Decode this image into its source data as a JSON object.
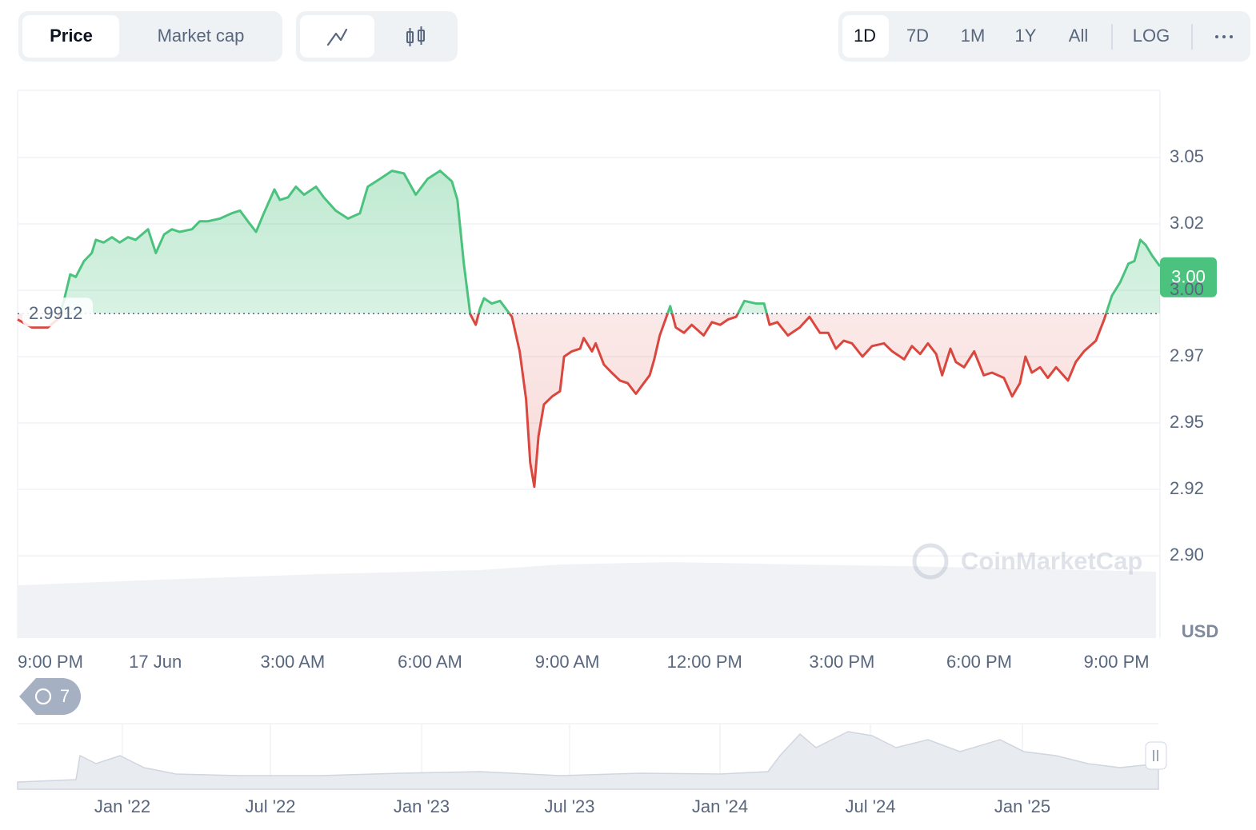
{
  "tabs": [
    "Price",
    "Market cap"
  ],
  "ranges": [
    "1D",
    "7D",
    "1M",
    "1Y",
    "All"
  ],
  "log_label": "LOG",
  "history_count": 7,
  "navigator": {
    "ticks": [
      "Jan '22",
      "Jul '22",
      "Jan '23",
      "Jul '23",
      "Jan '24",
      "Jul '24",
      "Jan '25"
    ]
  },
  "chart_data": {
    "type": "line",
    "up_color": "#4bc27d",
    "down_color": "#d9473f",
    "grid": true,
    "reference": 2.9912,
    "price_badge": {
      "value": 3.0049,
      "label": "3.00"
    },
    "currency": "USD",
    "watermark": "CoinMarketCap",
    "xlim": [
      -3.01,
      21.95
    ],
    "ylim": [
      2.869,
      3.0753
    ],
    "xticks": [
      {
        "value": -3,
        "label": "9:00 PM"
      },
      {
        "value": 0,
        "label": "17 Jun"
      },
      {
        "value": 3,
        "label": "3:00 AM"
      },
      {
        "value": 6,
        "label": "6:00 AM"
      },
      {
        "value": 9,
        "label": "9:00 AM"
      },
      {
        "value": 12,
        "label": "12:00 PM"
      },
      {
        "value": 15,
        "label": "3:00 PM"
      },
      {
        "value": 18,
        "label": "6:00 PM"
      },
      {
        "value": 21,
        "label": "9:00 PM"
      }
    ],
    "yticks": [
      3.05,
      {
        "value": 3.025,
        "label": "3.02"
      },
      {
        "value": 3,
        "label": "3.00"
      },
      {
        "value": 2.975,
        "label": "2.97"
      },
      2.95,
      {
        "value": 2.925,
        "label": "2.92"
      },
      {
        "value": 2.9,
        "label": "2.90"
      }
    ],
    "x": [
      -3.01,
      -2.7,
      -2.35,
      -2.14,
      -2.0,
      -1.86,
      -1.74,
      -1.56,
      -1.39,
      -1.3,
      -1.13,
      -0.95,
      -0.78,
      -0.6,
      -0.43,
      -0.16,
      0.01,
      0.19,
      0.36,
      0.53,
      0.8,
      0.97,
      1.15,
      1.41,
      1.67,
      1.85,
      2.02,
      2.2,
      2.37,
      2.6,
      2.72,
      2.9,
      3.07,
      3.25,
      3.51,
      3.68,
      3.94,
      4.21,
      4.47,
      4.64,
      4.91,
      5.17,
      5.43,
      5.69,
      5.95,
      6.22,
      6.48,
      6.6,
      6.74,
      6.88,
      7.0,
      7.09,
      7.18,
      7.35,
      7.53,
      7.79,
      7.96,
      8.1,
      8.19,
      8.28,
      8.37,
      8.49,
      8.67,
      8.84,
      8.93,
      9.1,
      9.28,
      9.36,
      9.54,
      9.62,
      9.8,
      9.97,
      10.15,
      10.32,
      10.5,
      10.67,
      10.8,
      10.9,
      11.02,
      11.25,
      11.37,
      11.55,
      11.72,
      11.98,
      12.16,
      12.34,
      12.51,
      12.69,
      12.87,
      13.12,
      13.3,
      13.42,
      13.59,
      13.82,
      14.08,
      14.29,
      14.52,
      14.7,
      14.87,
      15.04,
      15.22,
      15.45,
      15.66,
      15.92,
      16.1,
      16.36,
      16.53,
      16.71,
      16.88,
      17.06,
      17.19,
      17.37,
      17.49,
      17.67,
      17.89,
      18.1,
      18.28,
      18.54,
      18.72,
      18.89,
      19.01,
      19.15,
      19.33,
      19.5,
      19.68,
      19.94,
      20.11,
      20.29,
      20.55,
      20.73,
      20.9,
      21.08,
      21.26,
      21.39,
      21.52,
      21.64,
      21.78,
      21.95
    ],
    "values": [
      2.989,
      2.986,
      2.986,
      2.989,
      2.996,
      3.006,
      3.005,
      3.011,
      3.014,
      3.019,
      3.018,
      3.02,
      3.018,
      3.02,
      3.019,
      3.023,
      3.014,
      3.021,
      3.023,
      3.022,
      3.023,
      3.026,
      3.026,
      3.027,
      3.029,
      3.03,
      3.026,
      3.022,
      3.029,
      3.038,
      3.034,
      3.035,
      3.039,
      3.036,
      3.039,
      3.035,
      3.03,
      3.027,
      3.029,
      3.039,
      3.042,
      3.045,
      3.044,
      3.036,
      3.042,
      3.045,
      3.041,
      3.034,
      3.01,
      2.991,
      2.987,
      2.993,
      2.997,
      2.995,
      2.996,
      2.99,
      2.977,
      2.959,
      2.935,
      2.926,
      2.945,
      2.957,
      2.96,
      2.962,
      2.975,
      2.977,
      2.978,
      2.982,
      2.977,
      2.98,
      2.972,
      2.969,
      2.966,
      2.965,
      2.961,
      2.965,
      2.968,
      2.974,
      2.983,
      2.994,
      2.986,
      2.984,
      2.987,
      2.983,
      2.988,
      2.987,
      2.989,
      2.99,
      2.996,
      2.995,
      2.995,
      2.987,
      2.988,
      2.983,
      2.986,
      2.99,
      2.984,
      2.984,
      2.978,
      2.981,
      2.98,
      2.975,
      2.979,
      2.98,
      2.977,
      2.974,
      2.979,
      2.976,
      2.98,
      2.976,
      2.968,
      2.978,
      2.973,
      2.971,
      2.977,
      2.968,
      2.969,
      2.967,
      2.96,
      2.965,
      2.975,
      2.969,
      2.971,
      2.967,
      2.971,
      2.966,
      2.973,
      2.977,
      2.981,
      2.989,
      2.998,
      3.003,
      3.01,
      3.011,
      3.019,
      3.017,
      3.013,
      3.009
    ]
  }
}
